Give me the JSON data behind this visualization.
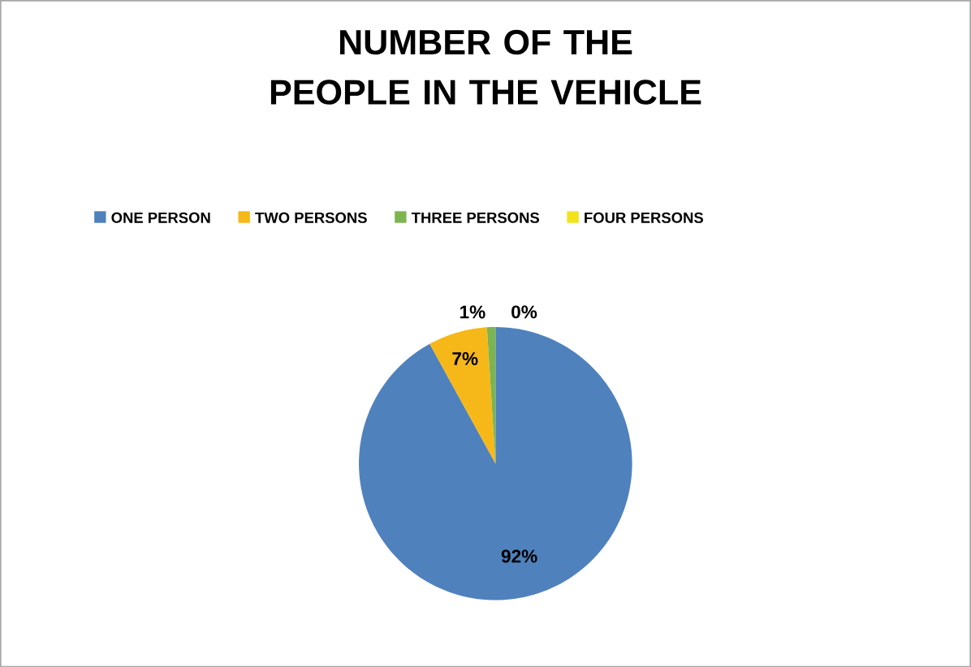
{
  "chart_data": {
    "type": "pie",
    "title": "NUMBER OF THE PEOPLE IN THE VEHICLE",
    "categories": [
      "ONE PERSON",
      "TWO PERSONS",
      "THREE PERSONS",
      "FOUR PERSONS"
    ],
    "values": [
      92,
      7,
      1,
      0
    ],
    "colors": [
      "#4f81bd",
      "#f6b818",
      "#7cb452",
      "#f2e31a"
    ],
    "value_labels": [
      "92%",
      "7%",
      "1%",
      "0%"
    ],
    "legend": "top"
  }
}
